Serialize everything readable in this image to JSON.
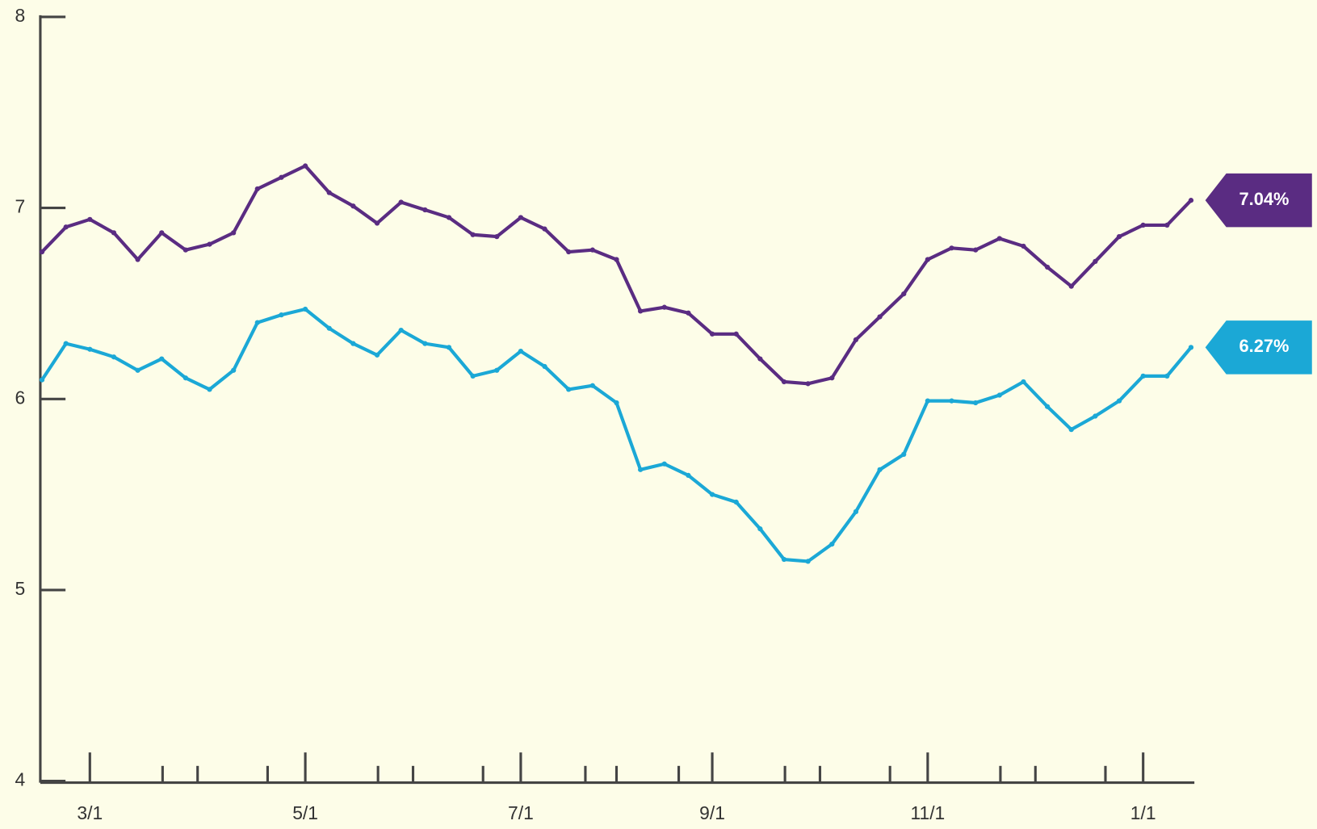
{
  "chart_data": {
    "type": "line",
    "categories": [
      null,
      null,
      "3/1",
      null,
      null,
      null,
      null,
      null,
      null,
      null,
      null,
      "5/1",
      null,
      null,
      null,
      null,
      null,
      null,
      null,
      null,
      "7/1",
      null,
      null,
      null,
      null,
      null,
      null,
      null,
      "9/1",
      null,
      null,
      null,
      null,
      null,
      null,
      null,
      null,
      "11/1",
      null,
      null,
      null,
      null,
      null,
      null,
      null,
      null,
      "1/1",
      null,
      null
    ],
    "series": [
      {
        "color": "#5a2c82",
        "values": [
          6.77,
          6.9,
          6.94,
          6.87,
          6.73,
          6.87,
          6.78,
          6.81,
          6.87,
          7.1,
          7.16,
          7.22,
          7.08,
          7.01,
          6.92,
          7.03,
          6.99,
          6.95,
          6.86,
          6.85,
          6.95,
          6.89,
          6.77,
          6.78,
          6.73,
          6.46,
          6.48,
          6.45,
          6.34,
          6.34,
          6.21,
          6.09,
          6.08,
          6.11,
          6.31,
          6.43,
          6.55,
          6.73,
          6.79,
          6.78,
          6.84,
          6.8,
          6.69,
          6.59,
          6.72,
          6.85,
          6.91,
          6.91,
          7.04
        ],
        "value_labels": [
          null,
          null,
          null,
          null,
          null,
          null,
          null,
          null,
          null,
          null,
          null,
          null,
          null,
          null,
          null,
          null,
          null,
          null,
          null,
          null,
          null,
          null,
          null,
          null,
          null,
          null,
          null,
          null,
          null,
          null,
          null,
          null,
          null,
          null,
          null,
          null,
          null,
          null,
          null,
          null,
          null,
          null,
          null,
          null,
          null,
          null,
          null,
          null,
          "7.04%"
        ]
      },
      {
        "color": "#1ba8d6",
        "values": [
          6.1,
          6.29,
          6.26,
          6.22,
          6.15,
          6.21,
          6.11,
          6.05,
          6.15,
          6.4,
          6.44,
          6.47,
          6.37,
          6.29,
          6.23,
          6.36,
          6.29,
          6.27,
          6.12,
          6.15,
          6.25,
          6.17,
          6.05,
          6.07,
          5.98,
          5.63,
          5.66,
          5.6,
          5.5,
          5.46,
          5.32,
          5.16,
          5.15,
          5.24,
          5.41,
          5.63,
          5.71,
          5.99,
          5.99,
          5.98,
          6.02,
          6.09,
          5.96,
          5.84,
          5.91,
          5.99,
          6.12,
          6.12,
          6.27
        ],
        "value_labels": [
          null,
          null,
          null,
          null,
          null,
          null,
          null,
          null,
          null,
          null,
          null,
          null,
          null,
          null,
          null,
          null,
          null,
          null,
          null,
          null,
          null,
          null,
          null,
          null,
          null,
          null,
          null,
          null,
          null,
          null,
          null,
          null,
          null,
          null,
          null,
          null,
          null,
          null,
          null,
          null,
          null,
          null,
          null,
          null,
          null,
          null,
          null,
          null,
          "6.27%"
        ]
      }
    ],
    "ylim": [
      4,
      8
    ],
    "yticks": [
      4,
      5,
      6,
      7,
      8
    ]
  }
}
